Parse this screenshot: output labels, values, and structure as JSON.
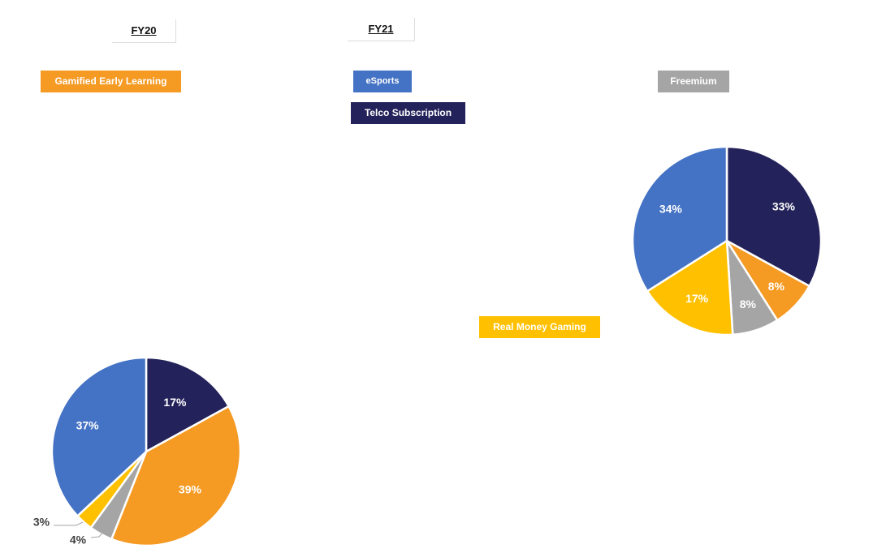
{
  "headers": {
    "fy20": "FY20",
    "fy21": "FY21"
  },
  "legend": [
    {
      "key": "gamified",
      "label": "Gamified Early Learning",
      "color": "#F59A23",
      "text_color": "#ffffff"
    },
    {
      "key": "esports",
      "label": "eSports",
      "color": "#4472C4",
      "text_color": "#ffffff"
    },
    {
      "key": "telco",
      "label": "Telco Subscription",
      "color": "#24225A",
      "text_color": "#ffffff"
    },
    {
      "key": "freemium",
      "label": "Freemium",
      "color": "#A5A5A5",
      "text_color": "#ffffff"
    },
    {
      "key": "rmg",
      "label": "Real Money Gaming",
      "color": "#FFC000",
      "text_color": "#ffffff"
    }
  ],
  "chart_data": [
    {
      "type": "pie",
      "title": "FY20",
      "slices": [
        {
          "label": "Telco Subscription",
          "value": 17,
          "display": "17%",
          "color": "#24225A"
        },
        {
          "label": "Gamified Early Learning",
          "value": 39,
          "display": "39%",
          "color": "#F59A23"
        },
        {
          "label": "Freemium",
          "value": 4,
          "display": "4%",
          "color": "#A5A5A5"
        },
        {
          "label": "Real Money Gaming",
          "value": 3,
          "display": "3%",
          "color": "#FFC000"
        },
        {
          "label": "eSports",
          "value": 37,
          "display": "37%",
          "color": "#4472C4"
        }
      ]
    },
    {
      "type": "pie",
      "title": "FY21",
      "slices": [
        {
          "label": "Telco Subscription",
          "value": 33,
          "display": "33%",
          "color": "#24225A"
        },
        {
          "label": "Gamified Early Learning",
          "value": 8,
          "display": "8%",
          "color": "#F59A23"
        },
        {
          "label": "Freemium",
          "value": 8,
          "display": "8%",
          "color": "#A5A5A5"
        },
        {
          "label": "Real Money Gaming",
          "value": 17,
          "display": "17%",
          "color": "#FFC000"
        },
        {
          "label": "eSports",
          "value": 34,
          "display": "34%",
          "color": "#4472C4"
        }
      ]
    }
  ]
}
